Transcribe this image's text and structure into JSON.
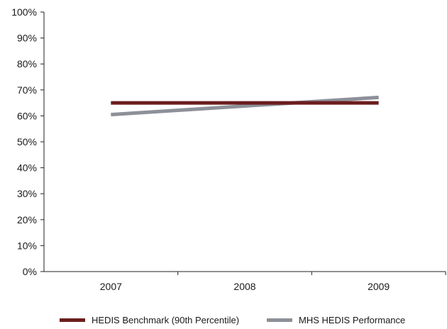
{
  "chart_data": {
    "type": "line",
    "categories": [
      "2007",
      "2008",
      "2009"
    ],
    "series": [
      {
        "name": "HEDIS Benchmark (90th Percentile)",
        "values": [
          65,
          65,
          65
        ],
        "color": "#6b1d1d"
      },
      {
        "name": "MHS HEDIS Performance",
        "values": [
          60.5,
          63.8,
          67.1
        ],
        "color": "#8e9099"
      }
    ],
    "y_ticks": [
      "0%",
      "10%",
      "20%",
      "30%",
      "40%",
      "50%",
      "60%",
      "70%",
      "80%",
      "90%",
      "100%"
    ],
    "ylim": [
      0,
      100
    ],
    "title": "",
    "xlabel": "",
    "ylabel": "",
    "grid": false,
    "legend_position": "bottom"
  }
}
